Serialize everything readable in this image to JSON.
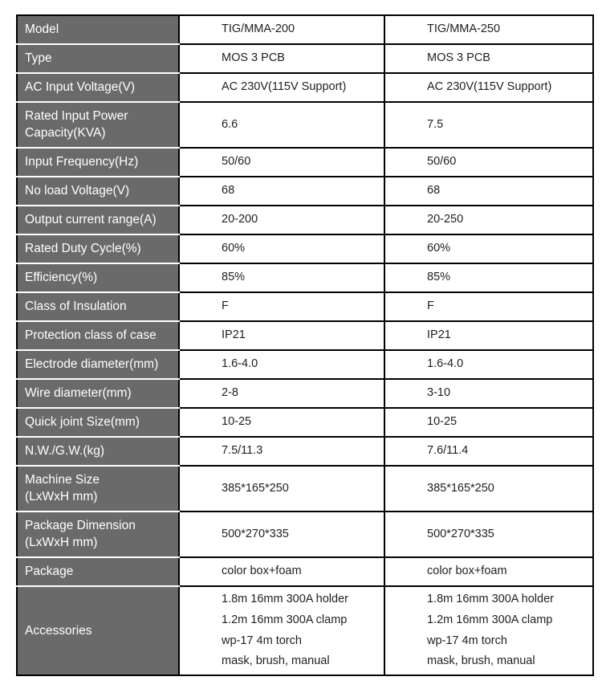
{
  "colors": {
    "label_bg": "#6a6a6a",
    "label_text": "#ffffff",
    "border": "#000000",
    "value_text": "#1f1f1f",
    "row_separator": "#ffffff"
  },
  "table": {
    "columns": [
      "spec-name",
      "TIG/MMA-200",
      "TIG/MMA-250"
    ],
    "rows": [
      {
        "label": "Model",
        "values": [
          "TIG/MMA-200",
          "TIG/MMA-250"
        ]
      },
      {
        "label": "Type",
        "values": [
          "MOS 3 PCB",
          "MOS 3 PCB"
        ]
      },
      {
        "label": "AC Input Voltage(V)",
        "values": [
          "AC 230V(115V Support)",
          "AC 230V(115V Support)"
        ]
      },
      {
        "label": "Rated Input Power\nCapacity(KVA)",
        "values": [
          "6.6",
          "7.5"
        ]
      },
      {
        "label": "Input Frequency(Hz)",
        "values": [
          "50/60",
          "50/60"
        ]
      },
      {
        "label": "No load Voltage(V)",
        "values": [
          "68",
          "68"
        ]
      },
      {
        "label": "Output current range(A)",
        "values": [
          "20-200",
          "20-250"
        ]
      },
      {
        "label": "Rated Duty Cycle(%)",
        "values": [
          "60%",
          "60%"
        ]
      },
      {
        "label": "Efficiency(%)",
        "values": [
          "85%",
          "85%"
        ]
      },
      {
        "label": "Class of Insulation",
        "values": [
          "F",
          "F"
        ]
      },
      {
        "label": "Protection class of case",
        "values": [
          "IP21",
          "IP21"
        ]
      },
      {
        "label": "Electrode diameter(mm)",
        "values": [
          "1.6-4.0",
          "1.6-4.0"
        ]
      },
      {
        "label": "Wire diameter(mm)",
        "values": [
          "2-8",
          "3-10"
        ]
      },
      {
        "label": "Quick joint Size(mm)",
        "values": [
          "10-25",
          "10-25"
        ]
      },
      {
        "label": "N.W./G.W.(kg)",
        "values": [
          "7.5/11.3",
          "7.6/11.4"
        ]
      },
      {
        "label": "Machine Size\n(LxWxH mm)",
        "values": [
          "385*165*250",
          "385*165*250"
        ]
      },
      {
        "label": "Package Dimension\n(LxWxH mm)",
        "values": [
          "500*270*335",
          "500*270*335"
        ]
      },
      {
        "label": "Package",
        "values": [
          "color box+foam",
          "color box+foam"
        ]
      },
      {
        "label": "Accessories",
        "values": [
          "1.8m 16mm 300A holder\n1.2m 16mm 300A clamp\nwp-17 4m torch\nmask, brush, manual",
          "1.8m 16mm 300A holder\n1.2m 16mm 300A clamp\nwp-17 4m torch\nmask, brush, manual"
        ]
      }
    ]
  }
}
